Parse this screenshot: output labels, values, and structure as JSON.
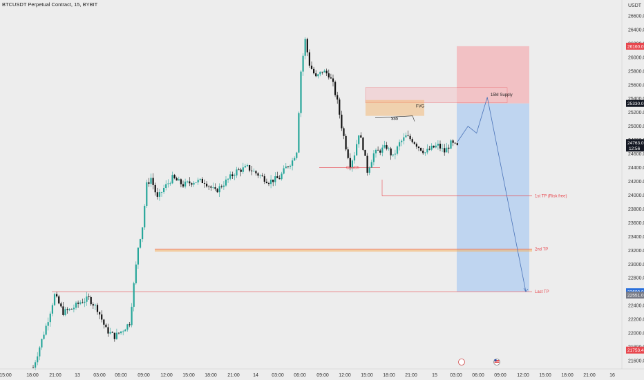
{
  "header": {
    "title": "BTCUSDT Perpetual Contract, 15, BYBIT"
  },
  "colors": {
    "up": "#26a69a",
    "down": "#111111",
    "stop_zone": "#f2b8bc",
    "target_zone": "#b9d2ef",
    "red_line": "#e8474e",
    "orange": "#f5b061",
    "blue_badge": "#2a6fdb",
    "dark_badge": "#131722",
    "red_badge": "#e8474e",
    "grey_badge": "#787b86"
  },
  "chart_data": {
    "type": "candlestick",
    "symbol": "BTCUSDT Perpetual Contract, 15, BYBIT",
    "y_axis": {
      "unit": "USDT",
      "range": [
        21480,
        26830
      ],
      "ticks": [
        26600,
        26400,
        26200,
        26000,
        25800,
        25600,
        25400,
        25200,
        25000,
        24800,
        24600,
        24400,
        24200,
        24000,
        23800,
        23600,
        23400,
        23200,
        23000,
        22800,
        22600,
        22400,
        22200,
        22000,
        21800,
        21600
      ],
      "tick_labels": [
        "26600.0",
        "26400.0",
        "26200.0",
        "26000.0",
        "25800.0",
        "25600.0",
        "25400.0",
        "25200.0",
        "25000.0",
        "24800.0",
        "24600.0",
        "24400.0",
        "24200.0",
        "24000.0",
        "23800.0",
        "23600.0",
        "23400.0",
        "23200.0",
        "23000.0",
        "22800.0",
        "22600.0",
        "22400.0",
        "22200.0",
        "22000.0",
        "21800.0",
        "21600.0"
      ]
    },
    "x_axis": {
      "tick_labels": [
        "15:00",
        "18:00",
        "21:00",
        "13",
        "03:00",
        "06:00",
        "09:00",
        "12:00",
        "15:00",
        "18:00",
        "21:00",
        "14",
        "03:00",
        "06:00",
        "09:00",
        "12:00",
        "15:00",
        "18:00",
        "21:00",
        "15",
        "03:00",
        "06:00",
        "09:00",
        "12:00",
        "15:00",
        "18:00",
        "21:00",
        "16"
      ]
    },
    "candles": {
      "period_minutes": 15,
      "count": 225,
      "waypoints": [
        [
          0,
          21500
        ],
        [
          4,
          21900
        ],
        [
          7,
          22200
        ],
        [
          10,
          22550
        ],
        [
          14,
          22300
        ],
        [
          18,
          22350
        ],
        [
          22,
          22450
        ],
        [
          26,
          22500
        ],
        [
          30,
          22350
        ],
        [
          34,
          22050
        ],
        [
          38,
          21950
        ],
        [
          42,
          22050
        ],
        [
          45,
          22150
        ],
        [
          47,
          22700
        ],
        [
          49,
          23250
        ],
        [
          51,
          23550
        ],
        [
          53,
          24150
        ],
        [
          55,
          24250
        ],
        [
          58,
          23950
        ],
        [
          61,
          24100
        ],
        [
          65,
          24250
        ],
        [
          70,
          24150
        ],
        [
          75,
          24200
        ],
        [
          80,
          24200
        ],
        [
          85,
          24050
        ],
        [
          90,
          24200
        ],
        [
          95,
          24350
        ],
        [
          100,
          24400
        ],
        [
          105,
          24300
        ],
        [
          110,
          24200
        ],
        [
          115,
          24250
        ],
        [
          118,
          24400
        ],
        [
          121,
          24500
        ],
        [
          123,
          24650
        ],
        [
          125,
          25800
        ],
        [
          127,
          26250
        ],
        [
          129,
          25900
        ],
        [
          132,
          25700
        ],
        [
          135,
          25800
        ],
        [
          138,
          25750
        ],
        [
          140,
          25600
        ],
        [
          142,
          25350
        ],
        [
          144,
          25000
        ],
        [
          146,
          24700
        ],
        [
          148,
          24450
        ],
        [
          150,
          24600
        ],
        [
          152,
          24900
        ],
        [
          154,
          24700
        ],
        [
          156,
          24350
        ],
        [
          159,
          24600
        ],
        [
          162,
          24650
        ],
        [
          165,
          24700
        ],
        [
          168,
          24550
        ],
        [
          171,
          24750
        ],
        [
          174,
          24850
        ],
        [
          177,
          24800
        ],
        [
          180,
          24700
        ],
        [
          183,
          24620
        ],
        [
          186,
          24680
        ],
        [
          189,
          24720
        ],
        [
          192,
          24630
        ],
        [
          195,
          24750
        ],
        [
          198,
          24700
        ]
      ]
    },
    "trade_setup": {
      "stop_zone": [
        25330.0,
        26160.0
      ],
      "target_zone": [
        22600.0,
        25330.0
      ],
      "entry_price": 25330.0,
      "stop_price": 26160.0,
      "target_price": 22600.0
    },
    "levels": [
      {
        "name": "1st TP (Risk free)",
        "price": 23990
      },
      {
        "name": "2nd TP",
        "price": 23200
      },
      {
        "name": "Last TP",
        "price": 22600
      }
    ],
    "zones": [
      {
        "name": "15M Supply",
        "top": 25560,
        "bottom": 25340
      },
      {
        "name": "FVG",
        "top": 25380,
        "bottom": 25150
      }
    ],
    "annotations": [
      {
        "name": "ChoCh",
        "price": 24400
      },
      {
        "name": "$$$",
        "price": 25120
      }
    ],
    "projection": [
      [
        198,
        24770
      ],
      [
        203,
        25000
      ],
      [
        207,
        24900
      ],
      [
        212,
        25420
      ],
      [
        230,
        22600
      ]
    ],
    "price_badges": [
      {
        "name": "price-label-stop",
        "text": "26160.0",
        "price": 26160.0,
        "style": "red"
      },
      {
        "name": "price-label-entry",
        "text": "25330.0",
        "price": 25330.0,
        "style": "dark"
      },
      {
        "name": "price-label-current",
        "text": "24763.0",
        "sub": "12:56",
        "price": 24763.0,
        "style": "dark"
      },
      {
        "name": "price-label-target",
        "text": "22600.0",
        "price": 22600.0,
        "style": "blue"
      },
      {
        "name": "price-label-low",
        "text": "22551.0",
        "price": 22551.0,
        "style": "grey"
      },
      {
        "name": "price-label-prev",
        "text": "21753.4",
        "price": 21753.4,
        "style": "red"
      }
    ]
  }
}
